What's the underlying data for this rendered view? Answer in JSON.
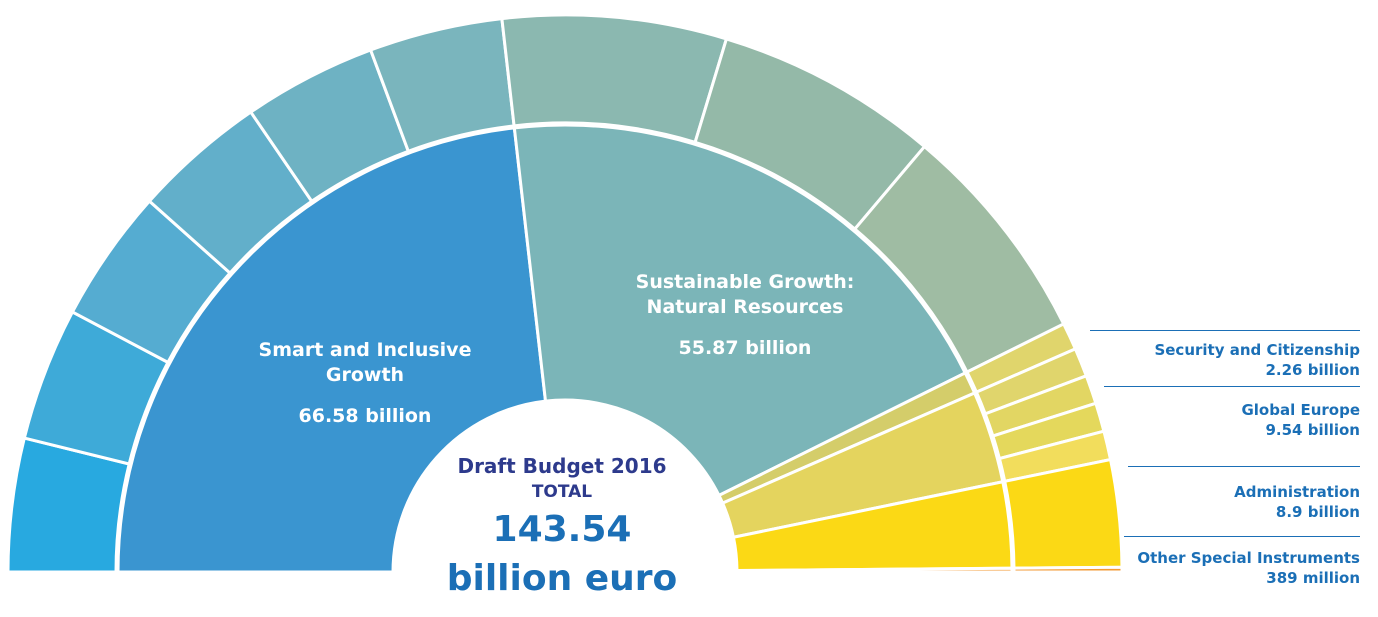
{
  "chart_data": {
    "type": "pie",
    "title": "Draft Budget 2016",
    "subtitle": "TOTAL",
    "total_value": "143.54",
    "total_unit": "billion euro",
    "categories": [
      {
        "name": "Smart and Inclusive Growth",
        "label_lines": [
          "Smart and Inclusive",
          "Growth"
        ],
        "value_label": "66.58 billion",
        "value": 66.58,
        "color": "#3a95d0",
        "label_in_chart": true,
        "sub_colors": [
          "#28a9e0",
          "#3eaad8",
          "#55acd1",
          "#62afca",
          "#6eb2c3",
          "#7ab5bd"
        ]
      },
      {
        "name": "Sustainable Growth: Natural Resources",
        "label_lines": [
          "Sustainable Growth:",
          "Natural Resources"
        ],
        "value_label": "55.87 billion",
        "value": 55.87,
        "color": "#7bb5b8",
        "label_in_chart": true,
        "sub_colors": [
          "#8bb8b0",
          "#94b9a8",
          "#9fbca3"
        ]
      },
      {
        "name": "Security and Citizenship",
        "label_lines": [
          "Security and Citizenship"
        ],
        "value_label": "2.26 billion",
        "value": 2.26,
        "color": "#d4cd6a",
        "label_in_chart": false,
        "sub_colors": [
          "#e0d56c"
        ]
      },
      {
        "name": "Global Europe",
        "label_lines": [
          "Global Europe"
        ],
        "value_label": "9.54 billion",
        "value": 9.54,
        "color": "#e4d45e",
        "label_in_chart": false,
        "sub_colors": [
          "#e0d56c",
          "#e2d663",
          "#e4d85c",
          "#f2dd5c"
        ]
      },
      {
        "name": "Administration",
        "label_lines": [
          "Administration"
        ],
        "value_label": "8.9 billion",
        "value": 8.9,
        "color": "#fbd915",
        "label_in_chart": false,
        "sub_colors": [
          "#fbd915"
        ]
      },
      {
        "name": "Other Special Instruments",
        "label_lines": [
          "Other Special Instruments"
        ],
        "value_label": "389 million",
        "value": 0.389,
        "color": "#f39a33",
        "label_in_chart": false,
        "sub_colors": [
          "#f39a33"
        ]
      }
    ],
    "legend": "right"
  }
}
